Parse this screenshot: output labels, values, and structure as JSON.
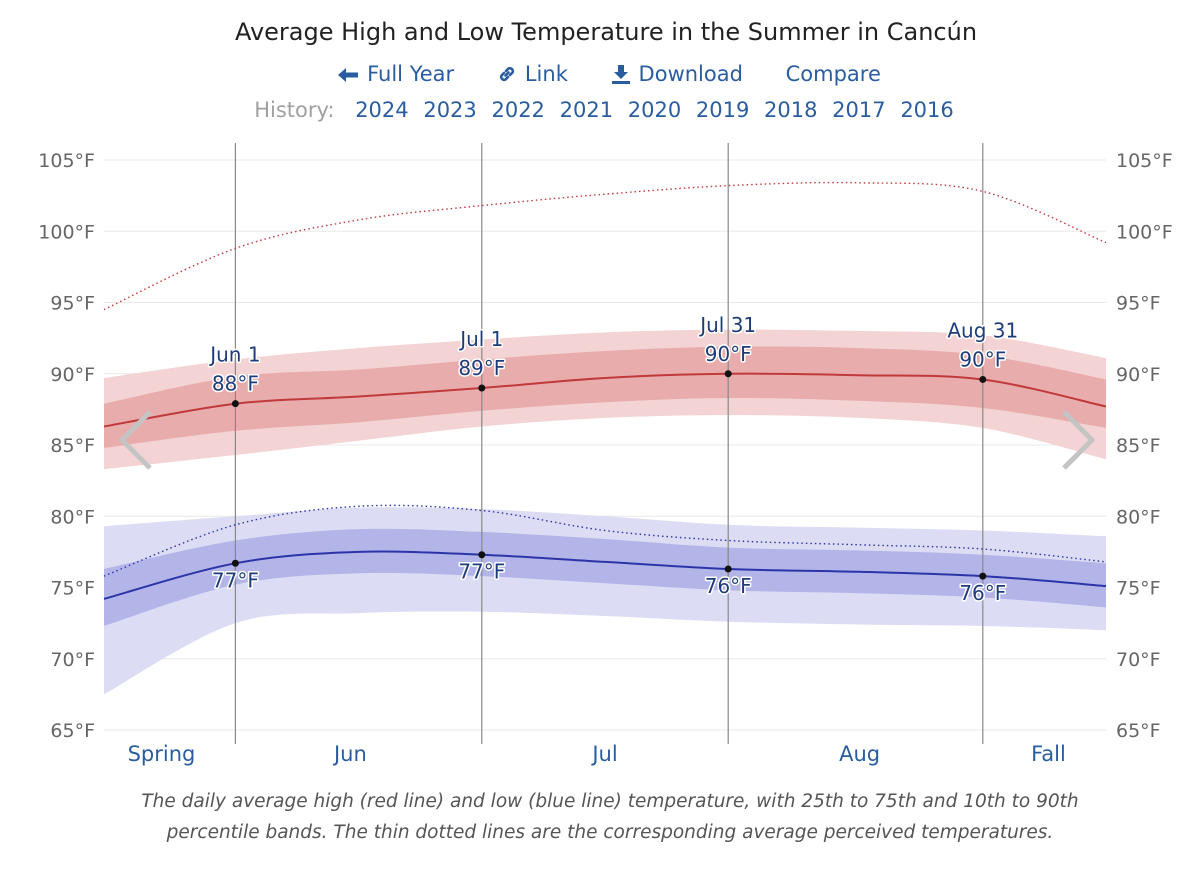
{
  "page": {
    "title": "Average High and Low Temperature in the Summer in Cancún",
    "nav": [
      {
        "label": "Full Year",
        "icon": "arrow-left-icon"
      },
      {
        "label": "Link",
        "icon": "link-icon"
      },
      {
        "label": "Download",
        "icon": "download-icon"
      },
      {
        "label": "Compare",
        "icon": ""
      }
    ],
    "history_label": "History:",
    "history_years": [
      "2024",
      "2023",
      "2022",
      "2021",
      "2020",
      "2019",
      "2018",
      "2017",
      "2016"
    ],
    "caption_line1": "The daily average high (red line) and low (blue line) temperature, with 25th to 75th and 10th to 90th",
    "caption_line2": "percentile bands. The thin dotted lines are the corresponding average perceived temperatures.",
    "prev_arrow_icon": "chevron-left-icon",
    "next_arrow_icon": "chevron-right-icon"
  },
  "chart_data": {
    "type": "line",
    "unit": "°F",
    "x_range": [
      "May 16",
      "Sep 15"
    ],
    "ylim": [
      65,
      105
    ],
    "y_ticks": [
      105,
      100,
      95,
      90,
      85,
      80,
      75,
      70,
      65
    ],
    "grid": true,
    "season_labels": [
      {
        "label": "Spring",
        "center": "May 23"
      },
      {
        "label": "Jun",
        "center": "Jun 15"
      },
      {
        "label": "Jul",
        "center": "Jul 16"
      },
      {
        "label": "Aug",
        "center": "Aug 16"
      },
      {
        "label": "Fall",
        "center": "Sep 8"
      }
    ],
    "dividers": [
      "Jun 1",
      "Jul 1",
      "Jul 31",
      "Aug 31"
    ],
    "marker_dates": [
      "Jun 1",
      "Jul 1",
      "Jul 31",
      "Aug 31"
    ],
    "dates": [
      "May 16",
      "Jun 1",
      "Jun 16",
      "Jul 1",
      "Jul 16",
      "Jul 31",
      "Aug 16",
      "Aug 31",
      "Sep 15"
    ],
    "high": {
      "mean": [
        86.3,
        87.9,
        88.4,
        89.0,
        89.7,
        90.0,
        89.9,
        89.6,
        87.7
      ],
      "p25": [
        84.8,
        86.0,
        86.6,
        87.4,
        88.0,
        88.3,
        88.1,
        87.6,
        86.2
      ],
      "p75": [
        87.9,
        89.8,
        90.3,
        91.0,
        91.6,
        91.9,
        91.8,
        91.3,
        89.6
      ],
      "p10": [
        83.3,
        84.3,
        85.3,
        86.3,
        86.9,
        87.1,
        86.9,
        86.2,
        84.0
      ],
      "p90": [
        89.7,
        91.0,
        91.8,
        92.4,
        92.9,
        93.1,
        93.0,
        92.7,
        91.1
      ],
      "perceived": [
        94.5,
        98.8,
        100.8,
        101.8,
        102.6,
        103.2,
        103.4,
        102.8,
        99.2
      ]
    },
    "low": {
      "mean": [
        74.2,
        76.7,
        77.5,
        77.3,
        76.8,
        76.3,
        76.1,
        75.8,
        75.1
      ],
      "p25": [
        72.3,
        75.2,
        76.0,
        75.8,
        75.3,
        74.8,
        74.6,
        74.3,
        73.6
      ],
      "p75": [
        76.3,
        78.3,
        79.1,
        78.9,
        78.4,
        77.8,
        77.6,
        77.3,
        76.7
      ],
      "p10": [
        67.5,
        72.5,
        73.2,
        73.3,
        73.0,
        72.6,
        72.4,
        72.3,
        72.0
      ],
      "p90": [
        79.3,
        80.0,
        80.6,
        80.5,
        80.0,
        79.4,
        79.2,
        79.0,
        78.6
      ],
      "perceived": [
        75.8,
        79.4,
        80.7,
        80.4,
        79.0,
        78.3,
        78.0,
        77.7,
        76.8
      ]
    },
    "callouts": [
      {
        "date": "Jun 1",
        "high_label": "88°F",
        "low_label": "77°F",
        "high": 87.9,
        "low": 76.7
      },
      {
        "date": "Jul 1",
        "high_label": "89°F",
        "low_label": "77°F",
        "high": 89.0,
        "low": 77.3
      },
      {
        "date": "Jul 31",
        "high_label": "90°F",
        "low_label": "76°F",
        "high": 90.0,
        "low": 76.3
      },
      {
        "date": "Aug 31",
        "high_label": "90°F",
        "low_label": "76°F",
        "high": 89.6,
        "low": 75.8
      }
    ],
    "colors": {
      "high_line": "#c0393b",
      "high_band_inner": "#e6a4a4",
      "high_band_outer": "#f3d3d3",
      "low_line": "#2b35a8",
      "low_band_inner": "#b3b5e8",
      "low_band_outer": "#dcdcf4",
      "divider": "#888888",
      "grid": "#e8e8e8"
    }
  }
}
